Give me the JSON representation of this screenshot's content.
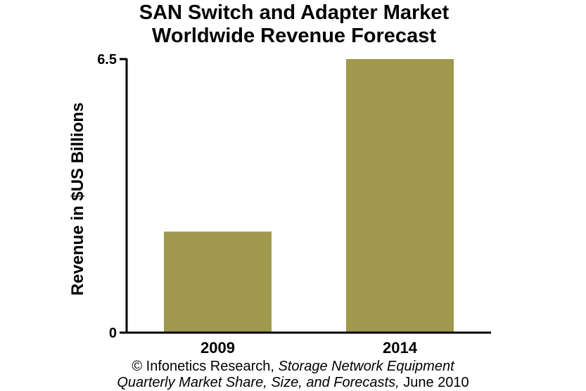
{
  "chart_data": {
    "type": "bar",
    "title_lines": [
      "SAN Switch and Adapter Market",
      "Worldwide Revenue Forecast"
    ],
    "xlabel": "",
    "ylabel": "Revenue in $US Billions",
    "categories": [
      "2009",
      "2014"
    ],
    "values": [
      2.4,
      6.5
    ],
    "ylim": [
      0,
      6.5
    ],
    "yticks": [
      {
        "value": 0,
        "label": "0"
      },
      {
        "value": 6.5,
        "label": "6.5"
      }
    ],
    "bar_color": "#a0994d",
    "grid": false
  },
  "credit": {
    "line1_prefix": "© Infonetics Research, ",
    "line1_italic": "Storage Network Equipment",
    "line2_italic": "Quarterly Market Share, Size, and Forecasts,",
    "line2_suffix": " June 2010"
  }
}
